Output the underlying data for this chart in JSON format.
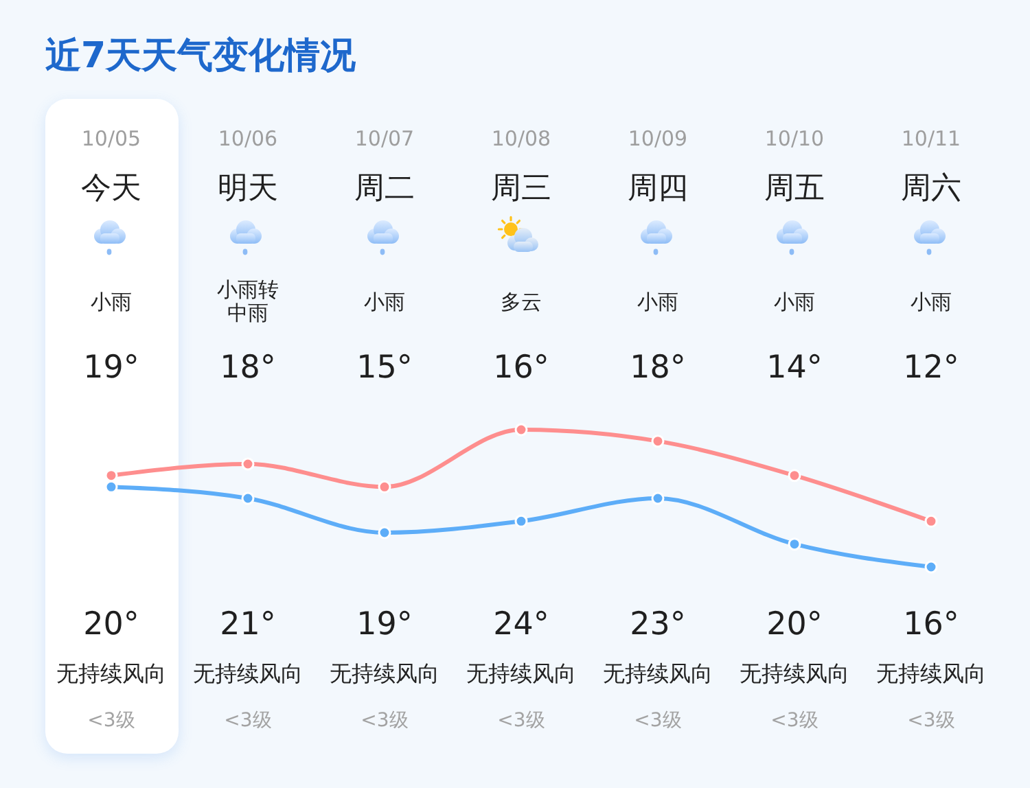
{
  "chart_data": {
    "type": "line",
    "title": "近7天天气变化情况",
    "categories": [
      "10/05",
      "10/06",
      "10/07",
      "10/08",
      "10/09",
      "10/10",
      "10/11"
    ],
    "series": [
      {
        "color": "#5dadf8",
        "values": [
          19,
          18,
          15,
          16,
          18,
          14,
          12
        ],
        "value_labels": [
          "19°",
          "18°",
          "15°",
          "16°",
          "18°",
          "14°",
          "12°"
        ]
      },
      {
        "color": "#fe8e8e",
        "values": [
          20,
          21,
          19,
          24,
          23,
          20,
          16
        ],
        "value_labels": [
          "20°",
          "21°",
          "19°",
          "24°",
          "23°",
          "20°",
          "16°"
        ]
      }
    ],
    "tick_labels": "x",
    "marker": "circle",
    "line_style": "solid",
    "annotations": [
      "今天",
      "明天",
      "周二",
      "周三",
      "周四",
      "周五",
      "周六",
      "小雨",
      "小雨转中雨",
      "小雨",
      "多云",
      "小雨",
      "小雨",
      "小雨",
      "无持续风向",
      "无持续风向",
      "无持续风向",
      "无持续风向",
      "无持续风向",
      "无持续风向",
      "无持续风向",
      "<3级",
      "<3级",
      "<3级",
      "<3级",
      "<3级",
      "<3级",
      "<3级"
    ]
  }
}
